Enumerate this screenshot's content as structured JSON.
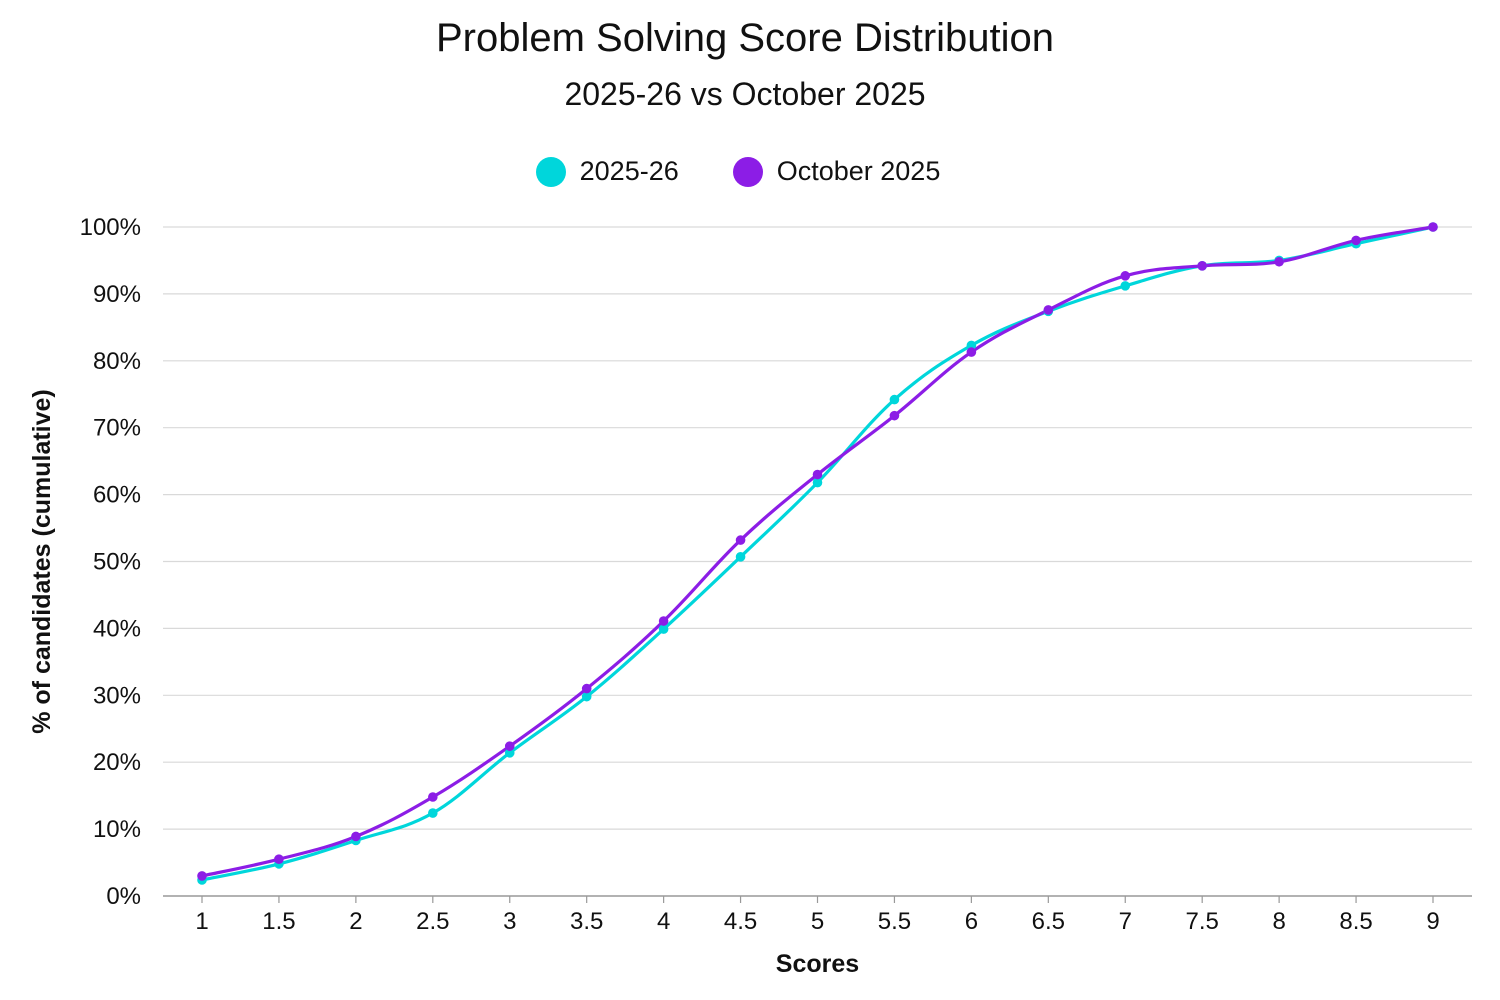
{
  "chart_data": {
    "type": "line",
    "title": "Problem Solving Score Distribution",
    "subtitle": "2025-26 vs October 2025",
    "xlabel": "Scores",
    "ylabel": "% of candidates (cumulative)",
    "x": [
      1,
      1.5,
      2,
      2.5,
      3,
      3.5,
      4,
      4.5,
      5,
      5.5,
      6,
      6.5,
      7,
      7.5,
      8,
      8.5,
      9
    ],
    "x_tick_labels": [
      "1",
      "1.5",
      "2",
      "2.5",
      "3",
      "3.5",
      "4",
      "4.5",
      "5",
      "5.5",
      "6",
      "6.5",
      "7",
      "7.5",
      "8",
      "8.5",
      "9"
    ],
    "y_ticks": [
      0,
      10,
      20,
      30,
      40,
      50,
      60,
      70,
      80,
      90,
      100
    ],
    "y_tick_labels": [
      "0%",
      "10%",
      "20%",
      "30%",
      "40%",
      "50%",
      "60%",
      "70%",
      "80%",
      "90%",
      "100%"
    ],
    "ylim": [
      0,
      100
    ],
    "grid": true,
    "legend_position": "top-center",
    "series": [
      {
        "name": "2025-26",
        "color": "#00D6DB",
        "values": [
          2.4,
          4.8,
          8.3,
          12.4,
          21.4,
          29.8,
          39.9,
          50.7,
          61.8,
          74.2,
          82.3,
          87.4,
          91.2,
          94.2,
          95.0,
          97.5,
          100
        ]
      },
      {
        "name": "October 2025",
        "color": "#8C1DE6",
        "values": [
          3.0,
          5.5,
          8.9,
          14.8,
          22.4,
          31.0,
          41.1,
          53.2,
          63.0,
          71.8,
          81.3,
          87.6,
          92.7,
          94.2,
          94.8,
          98.0,
          100
        ]
      }
    ]
  },
  "colors": {
    "gridline": "#d9d9d9",
    "axis_line": "#999999"
  }
}
